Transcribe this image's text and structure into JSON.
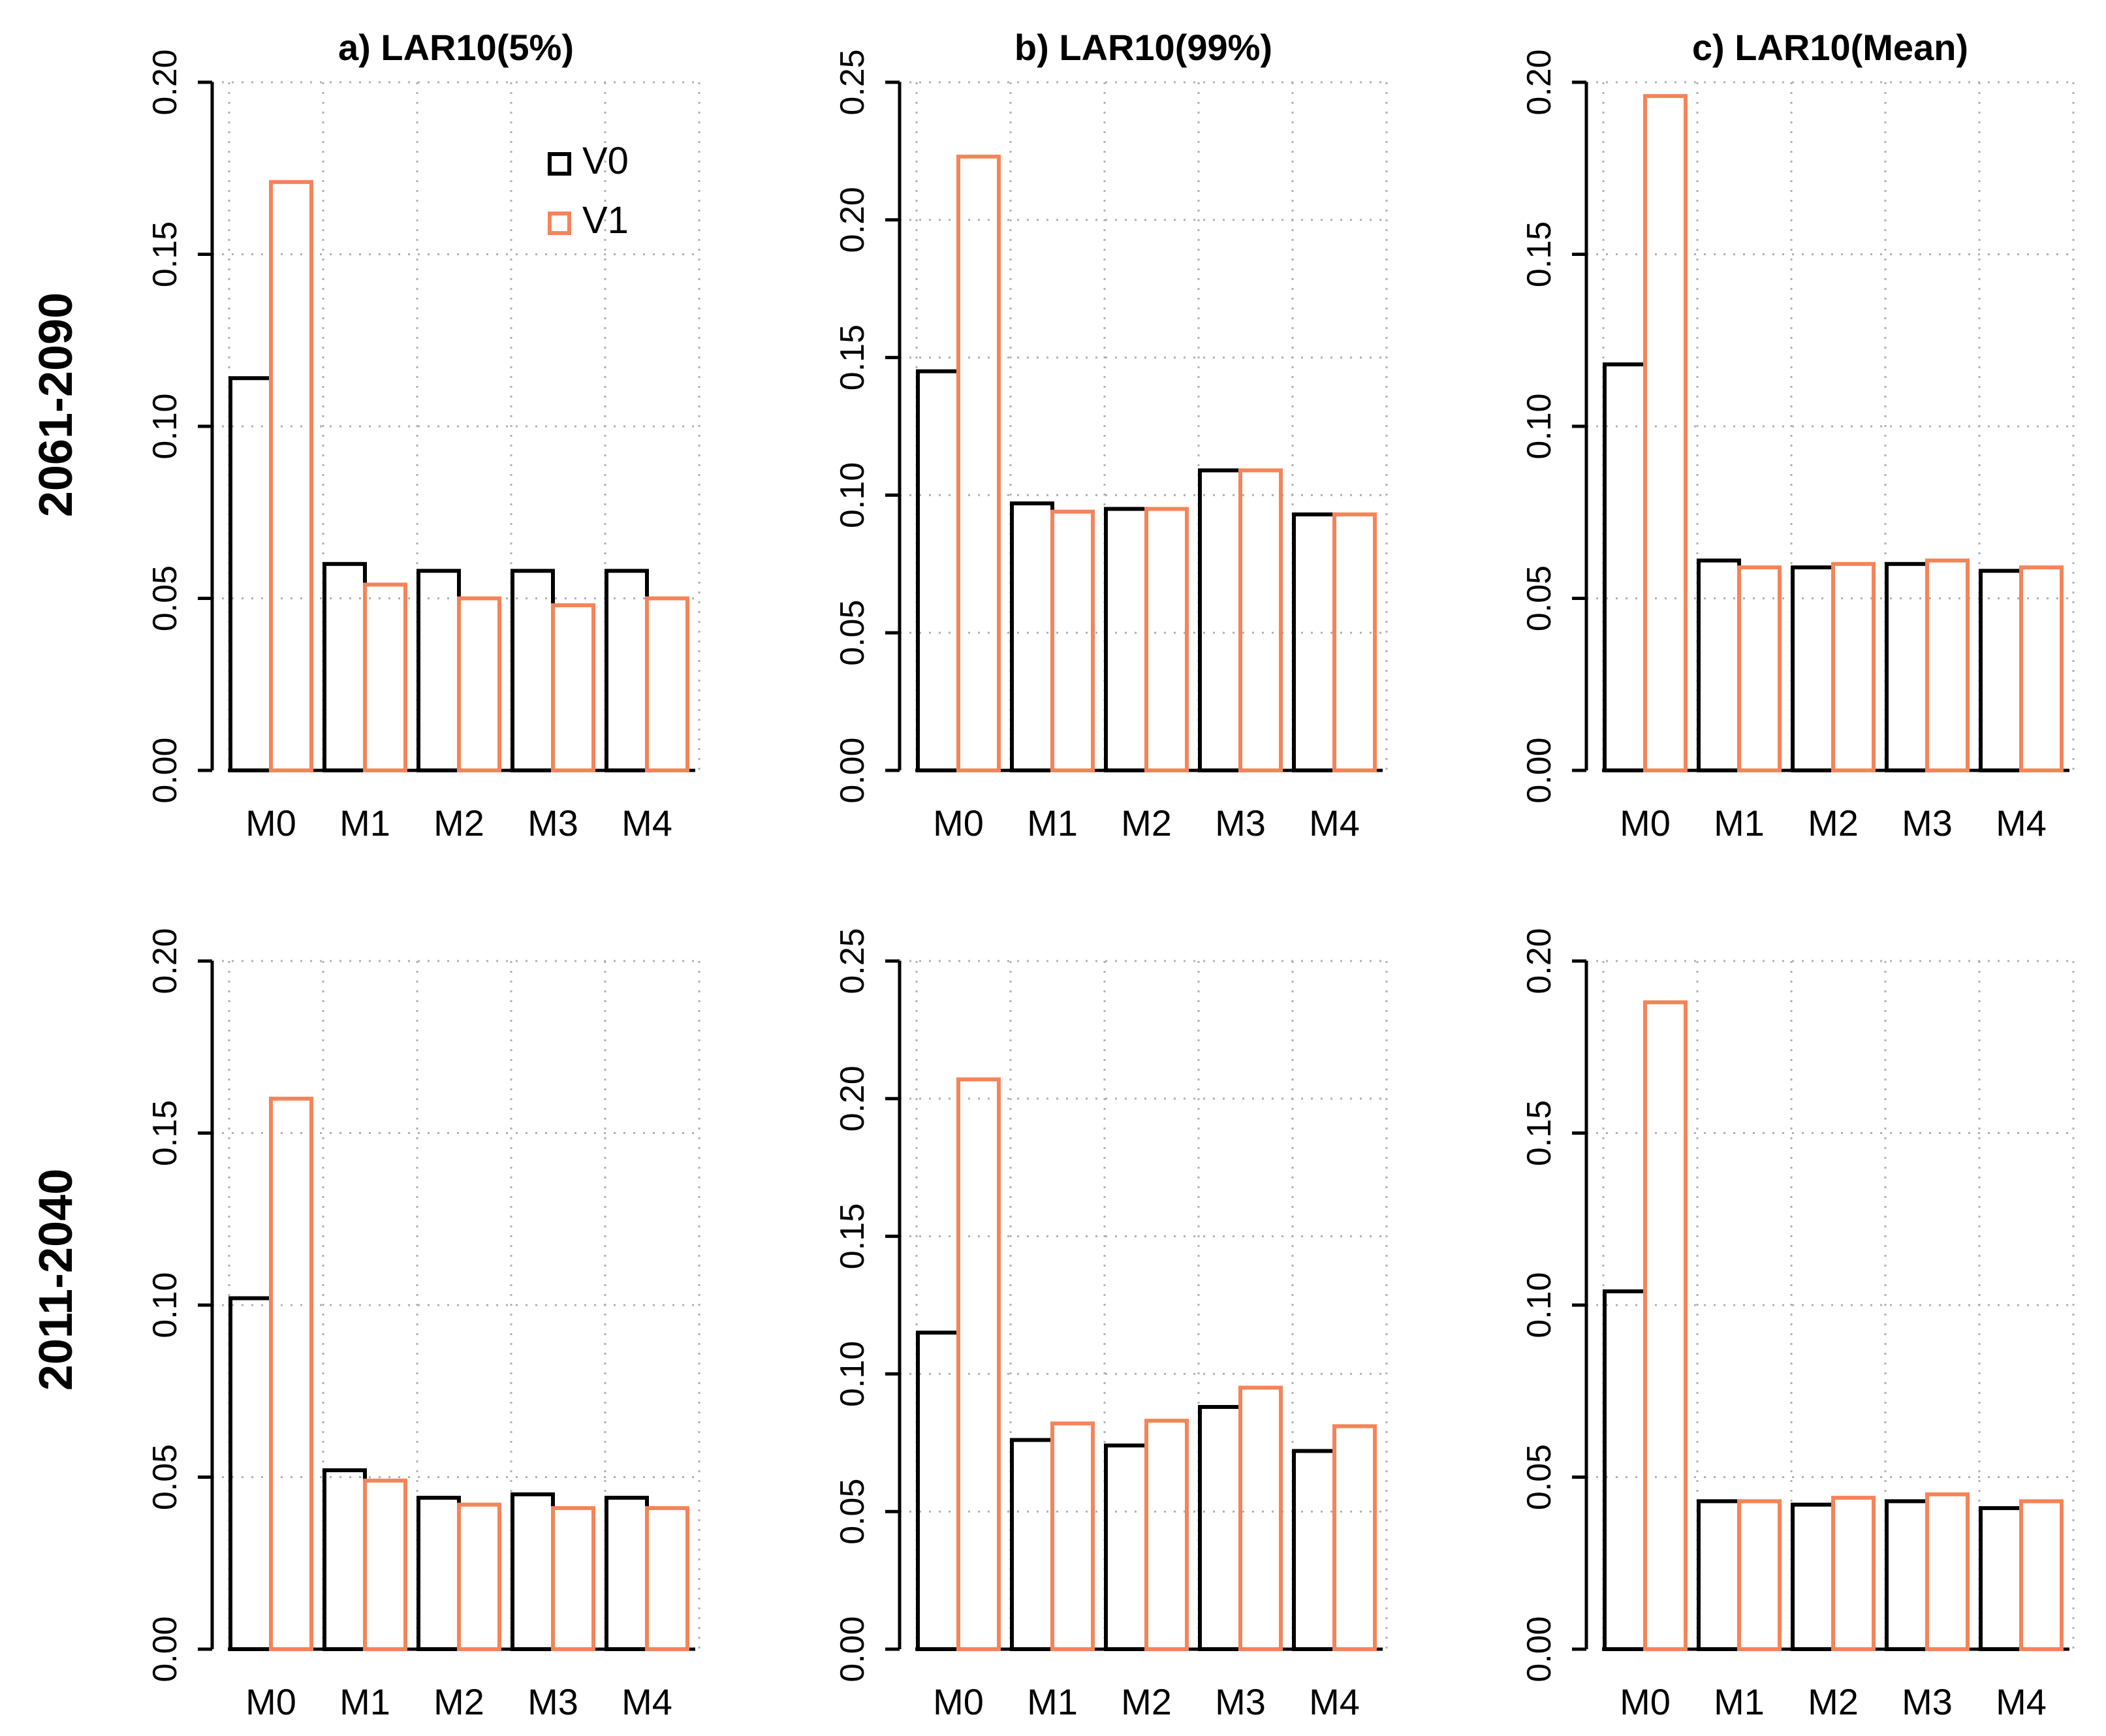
{
  "colors": {
    "V0": "#000000",
    "V1": "#F4845A",
    "grid": "#B0B0B0"
  },
  "legend": {
    "items": [
      "V0",
      "V1"
    ],
    "position": "top-right"
  },
  "rows": [
    {
      "label": "2061-2090"
    },
    {
      "label": "2011-2040"
    }
  ],
  "chart_data": [
    {
      "type": "bar",
      "row": 0,
      "col": 0,
      "title": "a) LAR10(5%)",
      "categories": [
        "M0",
        "M1",
        "M2",
        "M3",
        "M4"
      ],
      "ylim": [
        0,
        0.2
      ],
      "yticks": [
        "0.00",
        "0.05",
        "0.10",
        "0.15",
        "0.20"
      ],
      "series": [
        {
          "name": "V0",
          "values": [
            0.114,
            0.06,
            0.058,
            0.058,
            0.058
          ]
        },
        {
          "name": "V1",
          "values": [
            0.171,
            0.054,
            0.05,
            0.048,
            0.05
          ]
        }
      ]
    },
    {
      "type": "bar",
      "row": 0,
      "col": 1,
      "title": "b) LAR10(99%)",
      "categories": [
        "M0",
        "M1",
        "M2",
        "M3",
        "M4"
      ],
      "ylim": [
        0,
        0.25
      ],
      "yticks": [
        "0.00",
        "0.05",
        "0.10",
        "0.15",
        "0.20",
        "0.25"
      ],
      "series": [
        {
          "name": "V0",
          "values": [
            0.145,
            0.097,
            0.095,
            0.109,
            0.093
          ]
        },
        {
          "name": "V1",
          "values": [
            0.223,
            0.094,
            0.095,
            0.109,
            0.093
          ]
        }
      ]
    },
    {
      "type": "bar",
      "row": 0,
      "col": 2,
      "title": "c) LAR10(Mean)",
      "categories": [
        "M0",
        "M1",
        "M2",
        "M3",
        "M4"
      ],
      "ylim": [
        0,
        0.2
      ],
      "yticks": [
        "0.00",
        "0.05",
        "0.10",
        "0.15",
        "0.20"
      ],
      "series": [
        {
          "name": "V0",
          "values": [
            0.118,
            0.061,
            0.059,
            0.06,
            0.058
          ]
        },
        {
          "name": "V1",
          "values": [
            0.196,
            0.059,
            0.06,
            0.061,
            0.059
          ]
        }
      ]
    },
    {
      "type": "bar",
      "row": 1,
      "col": 0,
      "title": "",
      "categories": [
        "M0",
        "M1",
        "M2",
        "M3",
        "M4"
      ],
      "ylim": [
        0,
        0.2
      ],
      "yticks": [
        "0.00",
        "0.05",
        "0.10",
        "0.15",
        "0.20"
      ],
      "series": [
        {
          "name": "V0",
          "values": [
            0.102,
            0.052,
            0.044,
            0.045,
            0.044
          ]
        },
        {
          "name": "V1",
          "values": [
            0.16,
            0.049,
            0.042,
            0.041,
            0.041
          ]
        }
      ]
    },
    {
      "type": "bar",
      "row": 1,
      "col": 1,
      "title": "",
      "categories": [
        "M0",
        "M1",
        "M2",
        "M3",
        "M4"
      ],
      "ylim": [
        0,
        0.25
      ],
      "yticks": [
        "0.00",
        "0.05",
        "0.10",
        "0.15",
        "0.20",
        "0.25"
      ],
      "series": [
        {
          "name": "V0",
          "values": [
            0.115,
            0.076,
            0.074,
            0.088,
            0.072
          ]
        },
        {
          "name": "V1",
          "values": [
            0.207,
            0.082,
            0.083,
            0.095,
            0.081
          ]
        }
      ]
    },
    {
      "type": "bar",
      "row": 1,
      "col": 2,
      "title": "",
      "categories": [
        "M0",
        "M1",
        "M2",
        "M3",
        "M4"
      ],
      "ylim": [
        0,
        0.2
      ],
      "yticks": [
        "0.00",
        "0.05",
        "0.10",
        "0.15",
        "0.20"
      ],
      "series": [
        {
          "name": "V0",
          "values": [
            0.104,
            0.043,
            0.042,
            0.043,
            0.041
          ]
        },
        {
          "name": "V1",
          "values": [
            0.188,
            0.043,
            0.044,
            0.045,
            0.043
          ]
        }
      ]
    }
  ]
}
